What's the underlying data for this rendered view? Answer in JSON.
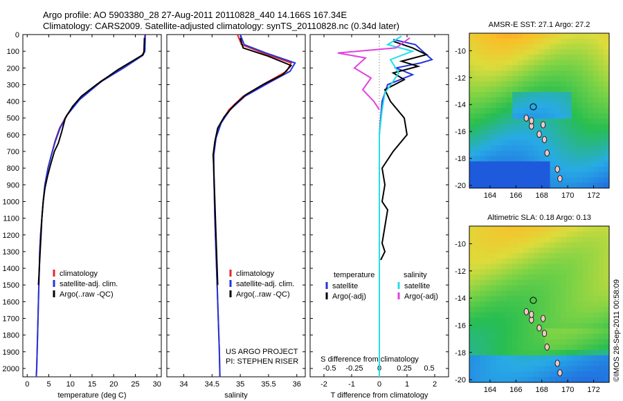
{
  "header": {
    "line1": "Argo profile: AO 5903380_28 27-Aug-2011 20110828_440 14.166S 167.34E",
    "line2": "Climatology: CARS2009. Satellite-adjusted climatology: synTS_20110828.nc (0.34d later)"
  },
  "footer_stamp": "©IMOS 28-Sep-2011 00:58:09",
  "colors": {
    "climatology": "#e8242a",
    "satellite": "#2233dd",
    "argo": "#000000",
    "satellite_s": "#20e0e8",
    "argo_s": "#e040e0"
  },
  "chart_data": [
    {
      "type": "line",
      "xlabel": "temperature (deg C)",
      "ylabel": "",
      "xlim": [
        -1,
        31
      ],
      "ylim": [
        2050,
        0
      ],
      "xticks": [
        "0",
        "5",
        "10",
        "15",
        "20",
        "25",
        "30"
      ],
      "xtick_values": [
        0,
        5,
        10,
        15,
        20,
        25,
        30
      ],
      "yticks": [
        "0",
        "100",
        "200",
        "300",
        "400",
        "500",
        "600",
        "700",
        "800",
        "900",
        "1000",
        "1100",
        "1200",
        "1300",
        "1400",
        "1500",
        "1600",
        "1700",
        "1800",
        "1900",
        "2000"
      ],
      "ytick_values": [
        0,
        100,
        200,
        300,
        400,
        500,
        600,
        700,
        800,
        900,
        1000,
        1100,
        1200,
        1300,
        1400,
        1500,
        1600,
        1700,
        1800,
        1900,
        2000
      ],
      "legend": [
        "climatology",
        "satellite-adj. clim.",
        "Argo(..raw -QC)"
      ],
      "legend_position": "lower-center",
      "series": [
        {
          "name": "climatology",
          "color": "#e8242a",
          "points": [
            [
              27.2,
              0
            ],
            [
              27.1,
              100
            ],
            [
              26.5,
              125
            ],
            [
              22,
              200
            ],
            [
              17,
              280
            ],
            [
              12,
              390
            ],
            [
              9.2,
              480
            ],
            [
              7.5,
              560
            ],
            [
              6.4,
              640
            ],
            [
              5.6,
              720
            ],
            [
              4.8,
              800
            ],
            [
              4.1,
              900
            ],
            [
              3.7,
              1000
            ],
            [
              3.4,
              1100
            ],
            [
              3.1,
              1200
            ],
            [
              2.9,
              1300
            ],
            [
              2.8,
              1400
            ],
            [
              2.6,
              1600
            ],
            [
              2.4,
              1800
            ],
            [
              2.2,
              2000
            ],
            [
              2.1,
              2050
            ]
          ]
        },
        {
          "name": "satellite-adj. clim.",
          "color": "#2233dd",
          "points": [
            [
              27.3,
              0
            ],
            [
              27.2,
              100
            ],
            [
              26.7,
              125
            ],
            [
              22.3,
              200
            ],
            [
              17.2,
              280
            ],
            [
              12.1,
              390
            ],
            [
              9.3,
              480
            ],
            [
              7.6,
              560
            ],
            [
              6.5,
              640
            ],
            [
              5.6,
              720
            ],
            [
              4.8,
              800
            ],
            [
              4.1,
              900
            ],
            [
              3.7,
              1000
            ],
            [
              3.4,
              1100
            ],
            [
              3.1,
              1200
            ],
            [
              2.9,
              1300
            ],
            [
              2.8,
              1400
            ],
            [
              2.6,
              1600
            ],
            [
              2.4,
              1800
            ],
            [
              2.2,
              2000
            ],
            [
              2.1,
              2050
            ]
          ]
        },
        {
          "name": "Argo(..raw -QC)",
          "color": "#000000",
          "points": [
            [
              27.1,
              20
            ],
            [
              27,
              100
            ],
            [
              26.8,
              120
            ],
            [
              21,
              210
            ],
            [
              16,
              300
            ],
            [
              12.5,
              370
            ],
            [
              10.5,
              430
            ],
            [
              8.8,
              500
            ],
            [
              8,
              580
            ],
            [
              7.2,
              650
            ],
            [
              6.3,
              700
            ],
            [
              5.4,
              780
            ],
            [
              4.7,
              850
            ],
            [
              4.1,
              920
            ],
            [
              3.7,
              1000
            ],
            [
              3.4,
              1100
            ],
            [
              3.2,
              1200
            ],
            [
              3.0,
              1300
            ],
            [
              2.8,
              1400
            ],
            [
              2.6,
              1500
            ]
          ]
        }
      ]
    },
    {
      "type": "line",
      "xlabel": "salinity",
      "xlim": [
        33.7,
        36.15
      ],
      "ylim": [
        2050,
        0
      ],
      "xticks": [
        "34",
        "34.5",
        "35",
        "35.5",
        "36"
      ],
      "xtick_values": [
        34,
        34.5,
        35,
        35.5,
        36
      ],
      "legend": [
        "climatology",
        "satellite-adj. clim.",
        "Argo(..raw -QC)"
      ],
      "legend_position": "lower-right",
      "annotations": [
        "US ARGO PROJECT",
        "PI: STEPHEN RISER"
      ],
      "series": [
        {
          "name": "climatology",
          "color": "#e8242a",
          "points": [
            [
              34.95,
              0
            ],
            [
              35.02,
              60
            ],
            [
              35.4,
              110
            ],
            [
              35.9,
              170
            ],
            [
              35.82,
              220
            ],
            [
              35.45,
              290
            ],
            [
              35.05,
              370
            ],
            [
              34.8,
              450
            ],
            [
              34.65,
              530
            ],
            [
              34.57,
              620
            ],
            [
              34.53,
              720
            ],
            [
              34.53,
              820
            ],
            [
              34.54,
              950
            ],
            [
              34.55,
              1100
            ],
            [
              34.57,
              1300
            ],
            [
              34.59,
              1500
            ],
            [
              34.61,
              1700
            ],
            [
              34.63,
              1900
            ],
            [
              34.64,
              2050
            ]
          ]
        },
        {
          "name": "satellite-adj. clim.",
          "color": "#2233dd",
          "points": [
            [
              35.0,
              0
            ],
            [
              35.07,
              60
            ],
            [
              35.45,
              110
            ],
            [
              35.97,
              170
            ],
            [
              35.88,
              220
            ],
            [
              35.5,
              290
            ],
            [
              35.08,
              370
            ],
            [
              34.82,
              450
            ],
            [
              34.66,
              530
            ],
            [
              34.57,
              620
            ],
            [
              34.53,
              720
            ],
            [
              34.53,
              820
            ],
            [
              34.54,
              950
            ],
            [
              34.55,
              1100
            ],
            [
              34.57,
              1300
            ],
            [
              34.59,
              1500
            ],
            [
              34.61,
              1700
            ],
            [
              34.63,
              1900
            ],
            [
              34.64,
              2050
            ]
          ]
        },
        {
          "name": "Argo(..raw -QC)",
          "color": "#000000",
          "points": [
            [
              35.0,
              20
            ],
            [
              35.05,
              80
            ],
            [
              35.5,
              130
            ],
            [
              35.9,
              185
            ],
            [
              35.75,
              240
            ],
            [
              35.4,
              300
            ],
            [
              35.1,
              360
            ],
            [
              34.9,
              420
            ],
            [
              34.72,
              490
            ],
            [
              34.6,
              560
            ],
            [
              34.55,
              640
            ],
            [
              34.52,
              720
            ],
            [
              34.53,
              800
            ],
            [
              34.55,
              1000
            ],
            [
              34.57,
              1200
            ],
            [
              34.59,
              1400
            ],
            [
              34.6,
              1500
            ]
          ]
        }
      ]
    },
    {
      "type": "line",
      "xlabel": "T difference from climatology",
      "xlabel_top": "S difference from climatology",
      "xlim": [
        -2.5,
        2.5
      ],
      "ylim": [
        2050,
        0
      ],
      "xticks": [
        "-2",
        "-1",
        "0",
        "1",
        "2"
      ],
      "xtick_values": [
        -2,
        -1,
        0,
        1,
        2
      ],
      "xticks_top": [
        "-0.5",
        "-0.25",
        "0",
        "0.25",
        "0.5"
      ],
      "xtick_values_top": [
        -1.8,
        -0.9,
        0,
        0.9,
        1.8
      ],
      "legend_groups": [
        {
          "title": "temperature",
          "items": [
            "satellite",
            "Argo(-adj)"
          ]
        },
        {
          "title": "salinity",
          "items": [
            "satellite",
            "Argo(-adj)"
          ]
        }
      ],
      "series": [
        {
          "name": "temperature satellite",
          "color": "#2233dd",
          "points": [
            [
              0.5,
              30
            ],
            [
              1.3,
              60
            ],
            [
              1.9,
              150
            ],
            [
              1.5,
              170
            ],
            [
              0.6,
              200
            ],
            [
              1.2,
              240
            ],
            [
              0.9,
              260
            ],
            [
              0.3,
              300
            ],
            [
              0.1,
              400
            ],
            [
              0,
              600
            ],
            [
              0,
              2050
            ]
          ]
        },
        {
          "name": "temperature Argo(-adj)",
          "color": "#000000",
          "points": [
            [
              0.5,
              40
            ],
            [
              1.2,
              80
            ],
            [
              1.7,
              120
            ],
            [
              0.8,
              160
            ],
            [
              1.4,
              190
            ],
            [
              0.5,
              230
            ],
            [
              0.9,
              270
            ],
            [
              0.2,
              330
            ],
            [
              0.4,
              400
            ],
            [
              0.9,
              500
            ],
            [
              1.0,
              600
            ],
            [
              0.5,
              700
            ],
            [
              0.1,
              800
            ],
            [
              0.2,
              900
            ],
            [
              0.1,
              1000
            ],
            [
              0.3,
              1050
            ],
            [
              0.2,
              1150
            ],
            [
              0.1,
              1250
            ],
            [
              0.2,
              1300
            ],
            [
              0.05,
              1350
            ]
          ]
        },
        {
          "name": "salinity satellite",
          "color": "#20e0e8",
          "points": [
            [
              0.8,
              10
            ],
            [
              0.3,
              60
            ],
            [
              1.2,
              100
            ],
            [
              0.4,
              150
            ],
            [
              0.7,
              230
            ],
            [
              0.5,
              280
            ],
            [
              0.2,
              350
            ],
            [
              0.1,
              450
            ],
            [
              0,
              600
            ],
            [
              0,
              2050
            ]
          ]
        },
        {
          "name": "salinity Argo(-adj)",
          "color": "#e040e0",
          "points": [
            [
              1.1,
              20
            ],
            [
              0.6,
              80
            ],
            [
              -1.5,
              110
            ],
            [
              -0.5,
              140
            ],
            [
              -0.9,
              200
            ],
            [
              -0.3,
              260
            ],
            [
              -0.6,
              330
            ],
            [
              -0.2,
              400
            ],
            [
              0,
              450
            ]
          ]
        }
      ]
    },
    {
      "type": "heatmap",
      "title": "AMSR-E SST: 27.1  Argo: 27.2",
      "xlim": [
        162.4,
        173.2
      ],
      "ylim": [
        -20.2,
        -8.7
      ],
      "xticks": [
        "164",
        "166",
        "168",
        "170",
        "172"
      ],
      "xtick_values": [
        164,
        166,
        168,
        170,
        172
      ],
      "yticks": [
        "-10",
        "-12",
        "-14",
        "-16",
        "-18",
        "-20"
      ],
      "ytick_values": [
        -10,
        -12,
        -14,
        -16,
        -18,
        -20
      ],
      "argo_position": [
        167.34,
        -14.166
      ]
    },
    {
      "type": "heatmap",
      "title": "Altimetric SLA: 0.18  Argo: 0.13",
      "xlim": [
        162.4,
        173.2
      ],
      "ylim": [
        -20.2,
        -8.7
      ],
      "xticks": [
        "164",
        "166",
        "168",
        "170",
        "172"
      ],
      "xtick_values": [
        164,
        166,
        168,
        170,
        172
      ],
      "yticks": [
        "-10",
        "-12",
        "-14",
        "-16",
        "-18",
        "-20"
      ],
      "ytick_values": [
        -10,
        -12,
        -14,
        -16,
        -18,
        -20
      ],
      "argo_position": [
        167.34,
        -14.166
      ]
    }
  ]
}
